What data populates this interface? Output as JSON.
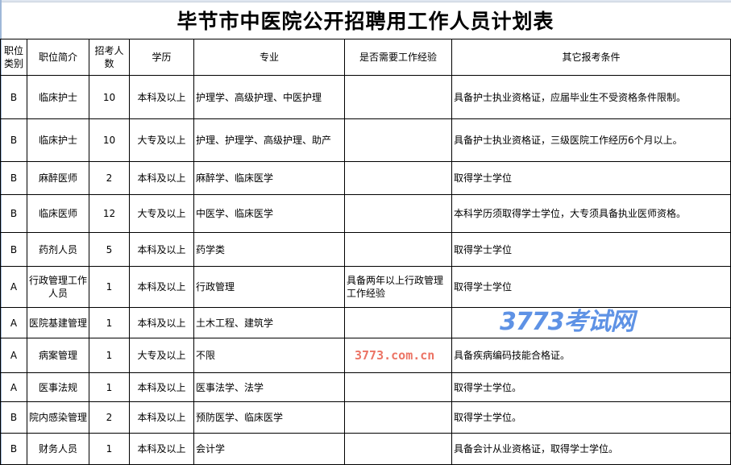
{
  "title": "毕节市中医院公开招聘用工作人员计划表",
  "headers": [
    "职位类别",
    "职位简介",
    "招考人数",
    "学历",
    "专业",
    "是否需要工作经验",
    "其它报考条件"
  ],
  "rows": [
    [
      "B",
      "临床护士",
      "10",
      "本科及以上",
      "护理学、高级护理、中医护理",
      "",
      "具备护士执业资格证，应届毕业生不受资格条件限制。"
    ],
    [
      "B",
      "临床护士",
      "10",
      "大专及以上",
      "护理、护理学、高级护理、助产",
      "",
      "具备护士执业资格证，三级医院工作经历6个月以上。"
    ],
    [
      "B",
      "麻醉医师",
      "2",
      "本科及以上",
      "麻醉学、临床医学",
      "",
      "取得学士学位"
    ],
    [
      "B",
      "临床医师",
      "12",
      "大专及以上",
      "中医学、临床医学",
      "",
      "本科学历须取得学士学位，大专须具备执业医师资格。"
    ],
    [
      "B",
      "药剂人员",
      "5",
      "本科及以上",
      "药学类",
      "",
      "取得学士学位"
    ],
    [
      "A",
      "行政管理工作人员",
      "1",
      "本科及以上",
      "行政管理",
      "具备两年以上行政管理工作经验",
      "取得学士学位"
    ],
    [
      "A",
      "医院基建管理",
      "1",
      "本科及以上",
      "土木工程、建筑学",
      "",
      ""
    ],
    [
      "A",
      "病案管理",
      "1",
      "大专及以上",
      "不限",
      "",
      "具备疾病编码技能合格证。"
    ],
    [
      "A",
      "医事法规",
      "1",
      "本科及以上",
      "医事法学、法学",
      "",
      "取得学士学位。"
    ],
    [
      "B",
      "院内感染管理",
      "2",
      "本科及以上",
      "预防医学、临床医学",
      "",
      "取得学士学位。"
    ],
    [
      "B",
      "财务人员",
      "1",
      "本科及以上",
      "会计学",
      "",
      "具备会计从业资格证，取得学士学位。"
    ]
  ],
  "watermark": {
    "logo": "3773考试网",
    "url": "3773.com.cn"
  }
}
